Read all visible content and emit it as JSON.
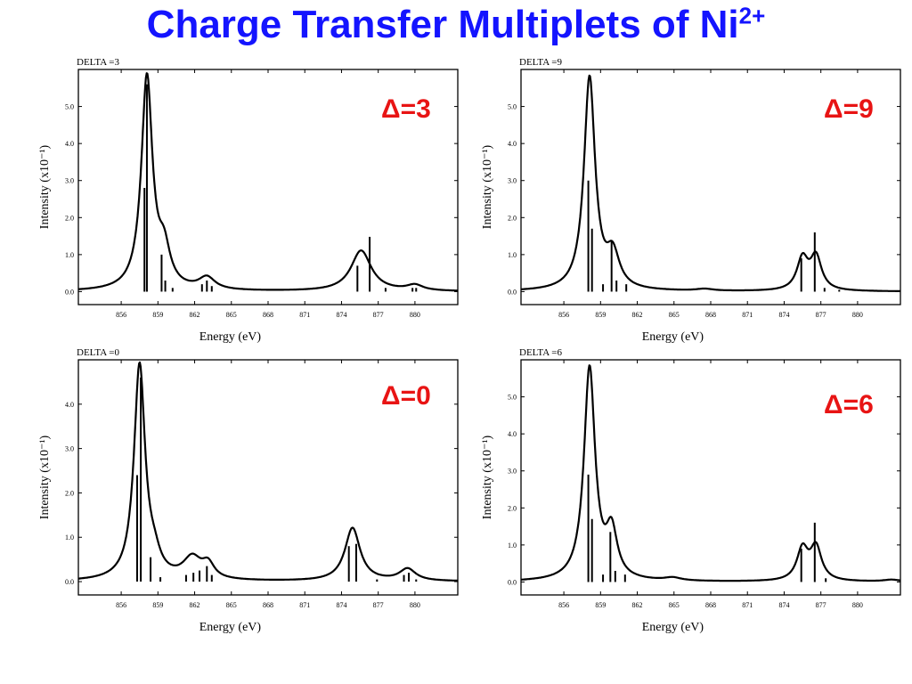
{
  "slide": {
    "title_main": "Charge Transfer Multiplets of Ni",
    "title_sup": "2+",
    "title_color": "#1414ff",
    "label_color": "#e81414"
  },
  "chart_data": [
    {
      "type": "line",
      "header": "DELTA =3",
      "delta_label": "Δ=3",
      "xlabel": "Energy (eV)",
      "ylabel": "Intensity (x10⁻¹)",
      "xlim": [
        852.5,
        883.5
      ],
      "ylim": [
        -0.35,
        6.0
      ],
      "xticks": [
        856,
        859,
        862,
        865,
        868,
        871,
        874,
        877,
        880
      ],
      "xtick_labels": [
        "856",
        "859",
        "862",
        "865",
        "868",
        "871",
        "874",
        "877",
        "880"
      ],
      "yticks": [
        0,
        1,
        2,
        3,
        4,
        5
      ],
      "ytick_labels": [
        "0.0",
        "1.0",
        "2.0",
        "3.0",
        "4.0",
        "5.0"
      ],
      "peaks": [
        {
          "x": 858.1,
          "h": 5.75,
          "w": 0.55
        },
        {
          "x": 859.5,
          "h": 0.95,
          "w": 0.6
        },
        {
          "x": 863.0,
          "h": 0.33,
          "w": 0.8
        },
        {
          "x": 875.6,
          "h": 1.1,
          "w": 1.0
        },
        {
          "x": 880.0,
          "h": 0.15,
          "w": 0.8
        }
      ],
      "sticks": [
        {
          "x": 857.9,
          "h": 2.8
        },
        {
          "x": 858.1,
          "h": 5.6
        },
        {
          "x": 859.3,
          "h": 1.0
        },
        {
          "x": 859.6,
          "h": 0.3
        },
        {
          "x": 860.2,
          "h": 0.1
        },
        {
          "x": 862.6,
          "h": 0.2
        },
        {
          "x": 863.0,
          "h": 0.3
        },
        {
          "x": 863.4,
          "h": 0.15
        },
        {
          "x": 875.3,
          "h": 0.7
        },
        {
          "x": 876.3,
          "h": 1.48
        },
        {
          "x": 877.6,
          "h": 0.1
        },
        {
          "x": 879.8,
          "h": 0.1
        },
        {
          "x": 880.1,
          "h": 0.1
        }
      ]
    },
    {
      "type": "line",
      "header": "DELTA =9",
      "delta_label": "Δ=9",
      "xlabel": "Energy (eV)",
      "ylabel": "Intensity (x10⁻¹)",
      "xlim": [
        852.5,
        883.5
      ],
      "ylim": [
        -0.35,
        6.0
      ],
      "xticks": [
        856,
        859,
        862,
        865,
        868,
        871,
        874,
        877,
        880
      ],
      "xtick_labels": [
        "856",
        "859",
        "862",
        "865",
        "868",
        "871",
        "874",
        "877",
        "880"
      ],
      "yticks": [
        0,
        1,
        2,
        3,
        4,
        5
      ],
      "ytick_labels": [
        "0.0",
        "1.0",
        "2.0",
        "3.0",
        "4.0",
        "5.0"
      ],
      "peaks": [
        {
          "x": 858.1,
          "h": 5.75,
          "w": 0.55
        },
        {
          "x": 860.0,
          "h": 0.9,
          "w": 0.65
        },
        {
          "x": 867.5,
          "h": 0.05,
          "w": 0.8
        },
        {
          "x": 875.5,
          "h": 0.85,
          "w": 0.55
        },
        {
          "x": 876.6,
          "h": 0.9,
          "w": 0.55
        }
      ],
      "sticks": [
        {
          "x": 858.0,
          "h": 3.0
        },
        {
          "x": 858.3,
          "h": 1.7
        },
        {
          "x": 859.2,
          "h": 0.2
        },
        {
          "x": 859.9,
          "h": 1.35
        },
        {
          "x": 860.3,
          "h": 0.3
        },
        {
          "x": 861.1,
          "h": 0.2
        },
        {
          "x": 875.4,
          "h": 0.9
        },
        {
          "x": 876.5,
          "h": 1.6
        },
        {
          "x": 877.3,
          "h": 0.1
        },
        {
          "x": 878.5,
          "h": 0.05
        }
      ]
    },
    {
      "type": "line",
      "header": "DELTA =0",
      "delta_label": "Δ=0",
      "xlabel": "Energy (eV)",
      "ylabel": "Intensity (x10⁻¹)",
      "xlim": [
        852.5,
        883.5
      ],
      "ylim": [
        -0.3,
        5.0
      ],
      "xticks": [
        856,
        859,
        862,
        865,
        868,
        871,
        874,
        877,
        880
      ],
      "xtick_labels": [
        "856",
        "859",
        "862",
        "865",
        "868",
        "871",
        "874",
        "877",
        "880"
      ],
      "yticks": [
        0,
        1,
        2,
        3,
        4
      ],
      "ytick_labels": [
        "0.0",
        "1.0",
        "2.0",
        "3.0",
        "4.0"
      ],
      "peaks": [
        {
          "x": 857.5,
          "h": 4.85,
          "w": 0.55
        },
        {
          "x": 858.7,
          "h": 0.35,
          "w": 0.6
        },
        {
          "x": 861.8,
          "h": 0.48,
          "w": 0.9
        },
        {
          "x": 863.1,
          "h": 0.32,
          "w": 0.6
        },
        {
          "x": 874.9,
          "h": 1.2,
          "w": 0.75
        },
        {
          "x": 879.4,
          "h": 0.27,
          "w": 0.8
        }
      ],
      "sticks": [
        {
          "x": 857.3,
          "h": 2.4
        },
        {
          "x": 857.6,
          "h": 4.6
        },
        {
          "x": 858.4,
          "h": 0.55
        },
        {
          "x": 859.2,
          "h": 0.1
        },
        {
          "x": 861.3,
          "h": 0.15
        },
        {
          "x": 861.9,
          "h": 0.2
        },
        {
          "x": 862.4,
          "h": 0.25
        },
        {
          "x": 863.0,
          "h": 0.35
        },
        {
          "x": 863.4,
          "h": 0.15
        },
        {
          "x": 874.6,
          "h": 0.8
        },
        {
          "x": 875.2,
          "h": 0.85
        },
        {
          "x": 876.9,
          "h": 0.05
        },
        {
          "x": 879.1,
          "h": 0.15
        },
        {
          "x": 879.5,
          "h": 0.2
        },
        {
          "x": 880.1,
          "h": 0.05
        }
      ]
    },
    {
      "type": "line",
      "header": "DELTA =6",
      "delta_label": "Δ=6",
      "xlabel": "Energy (eV)",
      "ylabel": "Intensity (x10⁻¹)",
      "xlim": [
        852.5,
        883.5
      ],
      "ylim": [
        -0.35,
        6.0
      ],
      "xticks": [
        856,
        859,
        862,
        865,
        868,
        871,
        874,
        877,
        880
      ],
      "xtick_labels": [
        "856",
        "859",
        "862",
        "865",
        "868",
        "871",
        "874",
        "877",
        "880"
      ],
      "yticks": [
        0,
        1,
        2,
        3,
        4,
        5
      ],
      "ytick_labels": [
        "0.0",
        "1.0",
        "2.0",
        "3.0",
        "4.0",
        "5.0"
      ],
      "peaks": [
        {
          "x": 858.1,
          "h": 5.75,
          "w": 0.55
        },
        {
          "x": 859.9,
          "h": 1.25,
          "w": 0.55
        },
        {
          "x": 864.9,
          "h": 0.08,
          "w": 0.8
        },
        {
          "x": 875.5,
          "h": 0.85,
          "w": 0.55
        },
        {
          "x": 876.6,
          "h": 0.9,
          "w": 0.55
        },
        {
          "x": 882.8,
          "h": 0.05,
          "w": 0.8
        }
      ],
      "sticks": [
        {
          "x": 858.0,
          "h": 2.9
        },
        {
          "x": 858.3,
          "h": 1.7
        },
        {
          "x": 859.2,
          "h": 0.2
        },
        {
          "x": 859.8,
          "h": 1.35
        },
        {
          "x": 860.2,
          "h": 0.3
        },
        {
          "x": 861.0,
          "h": 0.2
        },
        {
          "x": 875.4,
          "h": 0.9
        },
        {
          "x": 876.5,
          "h": 1.6
        },
        {
          "x": 877.4,
          "h": 0.1
        }
      ]
    }
  ]
}
